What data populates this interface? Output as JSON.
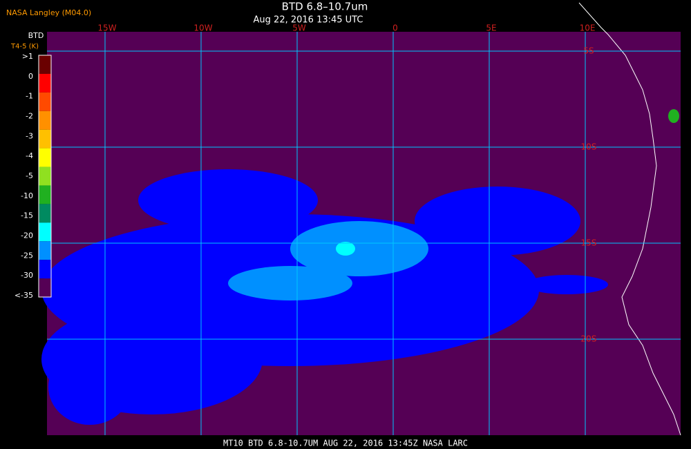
{
  "header": {
    "source": "NASA Langley (M04.0)",
    "title": "BTD 6.8–10.7um",
    "subtitle": "Aug 22, 2016 13:45 UTC"
  },
  "colorbar": {
    "title": "BTD",
    "unit": "T4-5 (K)",
    "labels": [
      ">1",
      "0",
      "-1",
      "-2",
      "-3",
      "-4",
      "-5",
      "-10",
      "-15",
      "-20",
      "-25",
      "-30",
      "<-35"
    ],
    "colors": [
      "#6a0000",
      "#ff0000",
      "#ff4a00",
      "#ff9000",
      "#ffc000",
      "#ffff00",
      "#90e020",
      "#20b020",
      "#008a60",
      "#00ffff",
      "#0090ff",
      "#0000ff",
      "#550055"
    ]
  },
  "map": {
    "lon_labels": [
      "15W",
      "10W",
      "5W",
      "0",
      "5E",
      "10E"
    ],
    "lat_labels": [
      "5S",
      "10S",
      "15S",
      "20S"
    ]
  },
  "footer": {
    "text": "MT10   BTD 6.8-10.7UM   AUG 22, 2016 13:45Z   NASA LARC"
  }
}
